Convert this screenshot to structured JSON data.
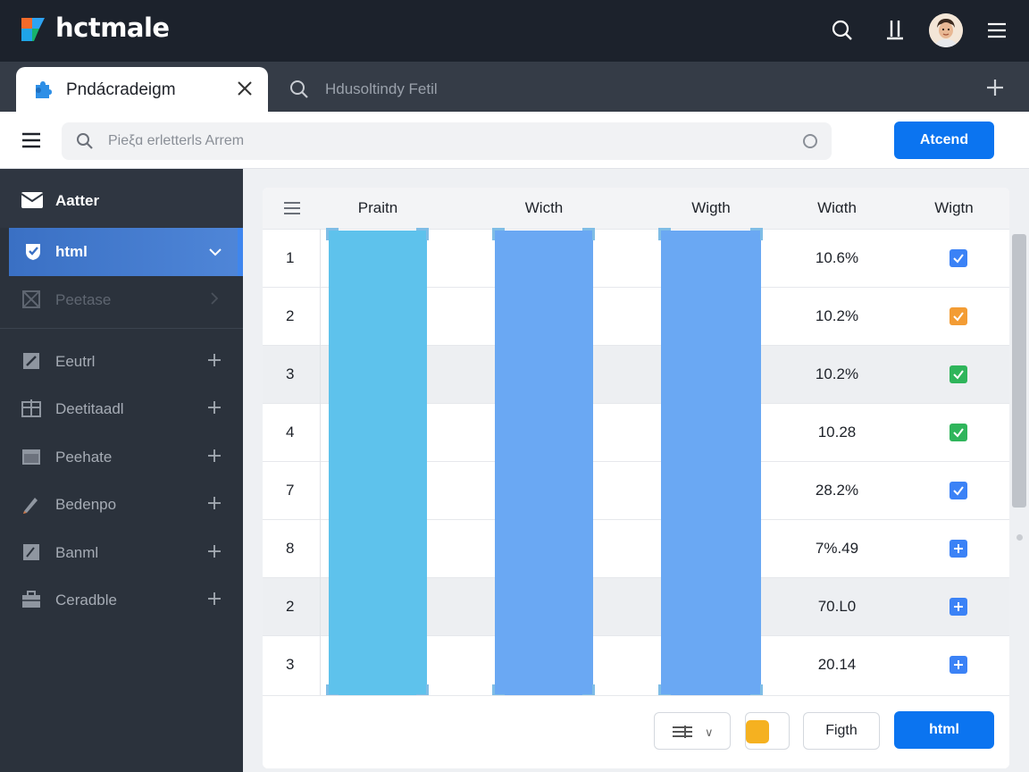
{
  "app": {
    "title": "hctmale"
  },
  "tabs": [
    {
      "label": "Pndácradeigm",
      "active": true
    },
    {
      "label": "Hdusoltindy Fetil",
      "active": false
    }
  ],
  "toolbar": {
    "search_placeholder": "Pieξɑ erletterls Arrem",
    "attend_label": "Atcend"
  },
  "sidebar": {
    "header": "Aatter",
    "active_item": "html",
    "items": [
      {
        "label": "Peetase",
        "dim": true
      },
      {
        "label": "Eeutrl"
      },
      {
        "label": "Deetitaadl"
      },
      {
        "label": "Peehate"
      },
      {
        "label": "Bedenpo"
      },
      {
        "label": "Banml"
      },
      {
        "label": "Ceradble"
      }
    ]
  },
  "table": {
    "columns": [
      "Praitn",
      "Wicth",
      "Wigth",
      "Wiαth",
      "Wigtn"
    ],
    "rows": [
      {
        "num": "1",
        "value": "10.6%",
        "check": "#3b82f6"
      },
      {
        "num": "2",
        "value": "10.2%",
        "check": "#f39c34"
      },
      {
        "num": "3",
        "value": "10.2%",
        "check": "#2fb55b"
      },
      {
        "num": "4",
        "value": "10.28",
        "check": "#2fb55b"
      },
      {
        "num": "7",
        "value": "28.2%",
        "check": "#3b82f6"
      },
      {
        "num": "8",
        "value": "7%.49",
        "check": "#3b82f6"
      },
      {
        "num": "2",
        "value": "70.L0",
        "check": "#3b82f6"
      },
      {
        "num": "3",
        "value": "20.14",
        "check": "#3b82f6"
      }
    ],
    "bar_colors": [
      "#5ec2ec",
      "#6aa8f3",
      "#6aa8f3"
    ]
  },
  "footer": {
    "secondary_label": "Figth",
    "primary_label": "html"
  },
  "colors": {
    "accent": "#0b74f0",
    "topbar": "#1c222c",
    "sidebar": "#2b323c"
  }
}
